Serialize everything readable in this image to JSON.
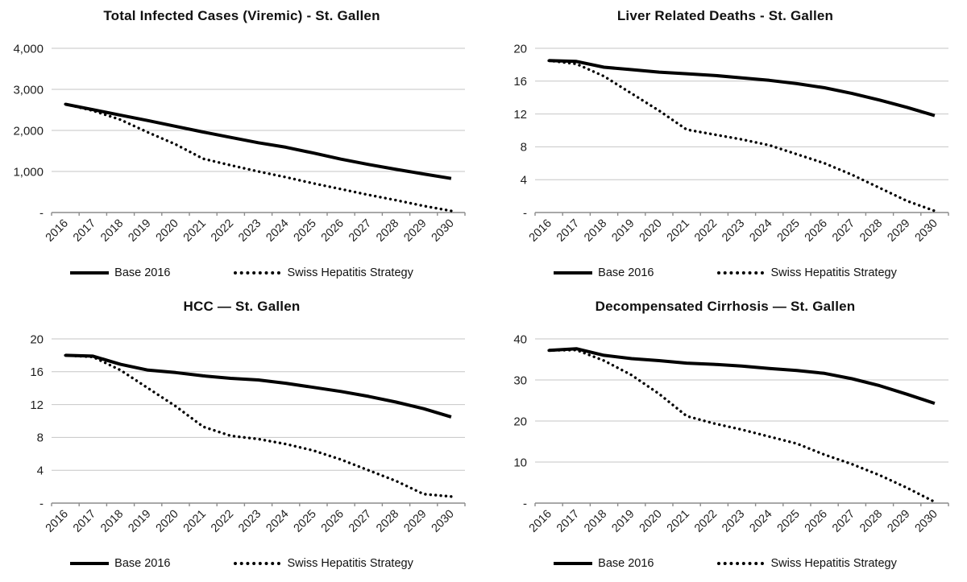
{
  "page": {
    "background": "#ffffff"
  },
  "colors": {
    "line": "#000000",
    "gridline": "#c6c6c6",
    "axis": "#8c8c8c",
    "text": "#1f1f1f"
  },
  "legend": {
    "base_label": "Base 2016",
    "strategy_label": "Swiss Hepatitis Strategy"
  },
  "chart_data": [
    {
      "id": "total-infected-cases",
      "type": "line",
      "title": "Total Infected Cases (Viremic) - St. Gallen",
      "x": [
        2016,
        2017,
        2018,
        2019,
        2020,
        2021,
        2022,
        2023,
        2024,
        2025,
        2026,
        2027,
        2028,
        2029,
        2030
      ],
      "ylim": [
        0,
        4000
      ],
      "ytick_labels": [
        "-",
        "1,000",
        "2,000",
        "3,000",
        "4,000"
      ],
      "grid": true,
      "legend_position": "bottom",
      "series": [
        {
          "name": "Base 2016",
          "style": "solid",
          "values": [
            2640,
            2505,
            2370,
            2240,
            2100,
            1960,
            1830,
            1700,
            1590,
            1450,
            1300,
            1170,
            1050,
            940,
            830
          ]
        },
        {
          "name": "Swiss Hepatitis Strategy",
          "style": "dotted",
          "values": [
            2640,
            2480,
            2260,
            1950,
            1660,
            1310,
            1150,
            1000,
            860,
            710,
            570,
            430,
            300,
            160,
            40
          ]
        }
      ]
    },
    {
      "id": "liver-related-deaths",
      "type": "line",
      "title": "Liver Related Deaths - St. Gallen",
      "x": [
        2016,
        2017,
        2018,
        2019,
        2020,
        2021,
        2022,
        2023,
        2024,
        2025,
        2026,
        2027,
        2028,
        2029,
        2030
      ],
      "ylim": [
        0,
        20
      ],
      "ytick_labels": [
        "-",
        "4",
        "8",
        "12",
        "16",
        "20"
      ],
      "grid": true,
      "legend_position": "bottom",
      "series": [
        {
          "name": "Base 2016",
          "style": "solid",
          "values": [
            18.5,
            18.4,
            17.7,
            17.4,
            17.1,
            16.9,
            16.7,
            16.4,
            16.1,
            15.7,
            15.2,
            14.5,
            13.7,
            12.8,
            11.8
          ]
        },
        {
          "name": "Swiss Hepatitis Strategy",
          "style": "dotted",
          "values": [
            18.5,
            18.1,
            16.6,
            14.5,
            12.4,
            10.1,
            9.5,
            8.9,
            8.2,
            7.1,
            6.0,
            4.6,
            3.0,
            1.4,
            0.2
          ]
        }
      ]
    },
    {
      "id": "hcc",
      "type": "line",
      "title": "HCC — St. Gallen",
      "x": [
        2016,
        2017,
        2018,
        2019,
        2020,
        2021,
        2022,
        2023,
        2024,
        2025,
        2026,
        2027,
        2028,
        2029,
        2030
      ],
      "ylim": [
        0,
        20
      ],
      "ytick_labels": [
        "-",
        "4",
        "8",
        "12",
        "16",
        "20"
      ],
      "grid": true,
      "legend_position": "bottom",
      "series": [
        {
          "name": "Base 2016",
          "style": "solid",
          "values": [
            18.0,
            17.9,
            16.9,
            16.2,
            15.9,
            15.5,
            15.2,
            15.0,
            14.6,
            14.1,
            13.6,
            13.0,
            12.3,
            11.5,
            10.5
          ]
        },
        {
          "name": "Swiss Hepatitis Strategy",
          "style": "dotted",
          "values": [
            18.0,
            17.8,
            16.2,
            14.0,
            11.8,
            9.3,
            8.2,
            7.8,
            7.2,
            6.4,
            5.3,
            4.0,
            2.7,
            1.1,
            0.8
          ]
        }
      ]
    },
    {
      "id": "decompensated-cirrhosis",
      "type": "line",
      "title": "Decompensated Cirrhosis — St. Gallen",
      "x": [
        2016,
        2017,
        2018,
        2019,
        2020,
        2021,
        2022,
        2023,
        2024,
        2025,
        2026,
        2027,
        2028,
        2029,
        2030
      ],
      "ylim": [
        0,
        40
      ],
      "ytick_labels": [
        "-",
        "10",
        "20",
        "30",
        "40"
      ],
      "grid": true,
      "legend_position": "bottom",
      "series": [
        {
          "name": "Base 2016",
          "style": "solid",
          "values": [
            37.2,
            37.6,
            36.0,
            35.2,
            34.7,
            34.1,
            33.8,
            33.4,
            32.8,
            32.3,
            31.6,
            30.3,
            28.6,
            26.5,
            24.3
          ]
        },
        {
          "name": "Swiss Hepatitis Strategy",
          "style": "dotted",
          "values": [
            37.2,
            37.3,
            34.7,
            31.2,
            26.6,
            21.2,
            19.4,
            17.9,
            16.2,
            14.5,
            11.8,
            9.5,
            6.8,
            3.7,
            0.3
          ]
        }
      ]
    }
  ]
}
